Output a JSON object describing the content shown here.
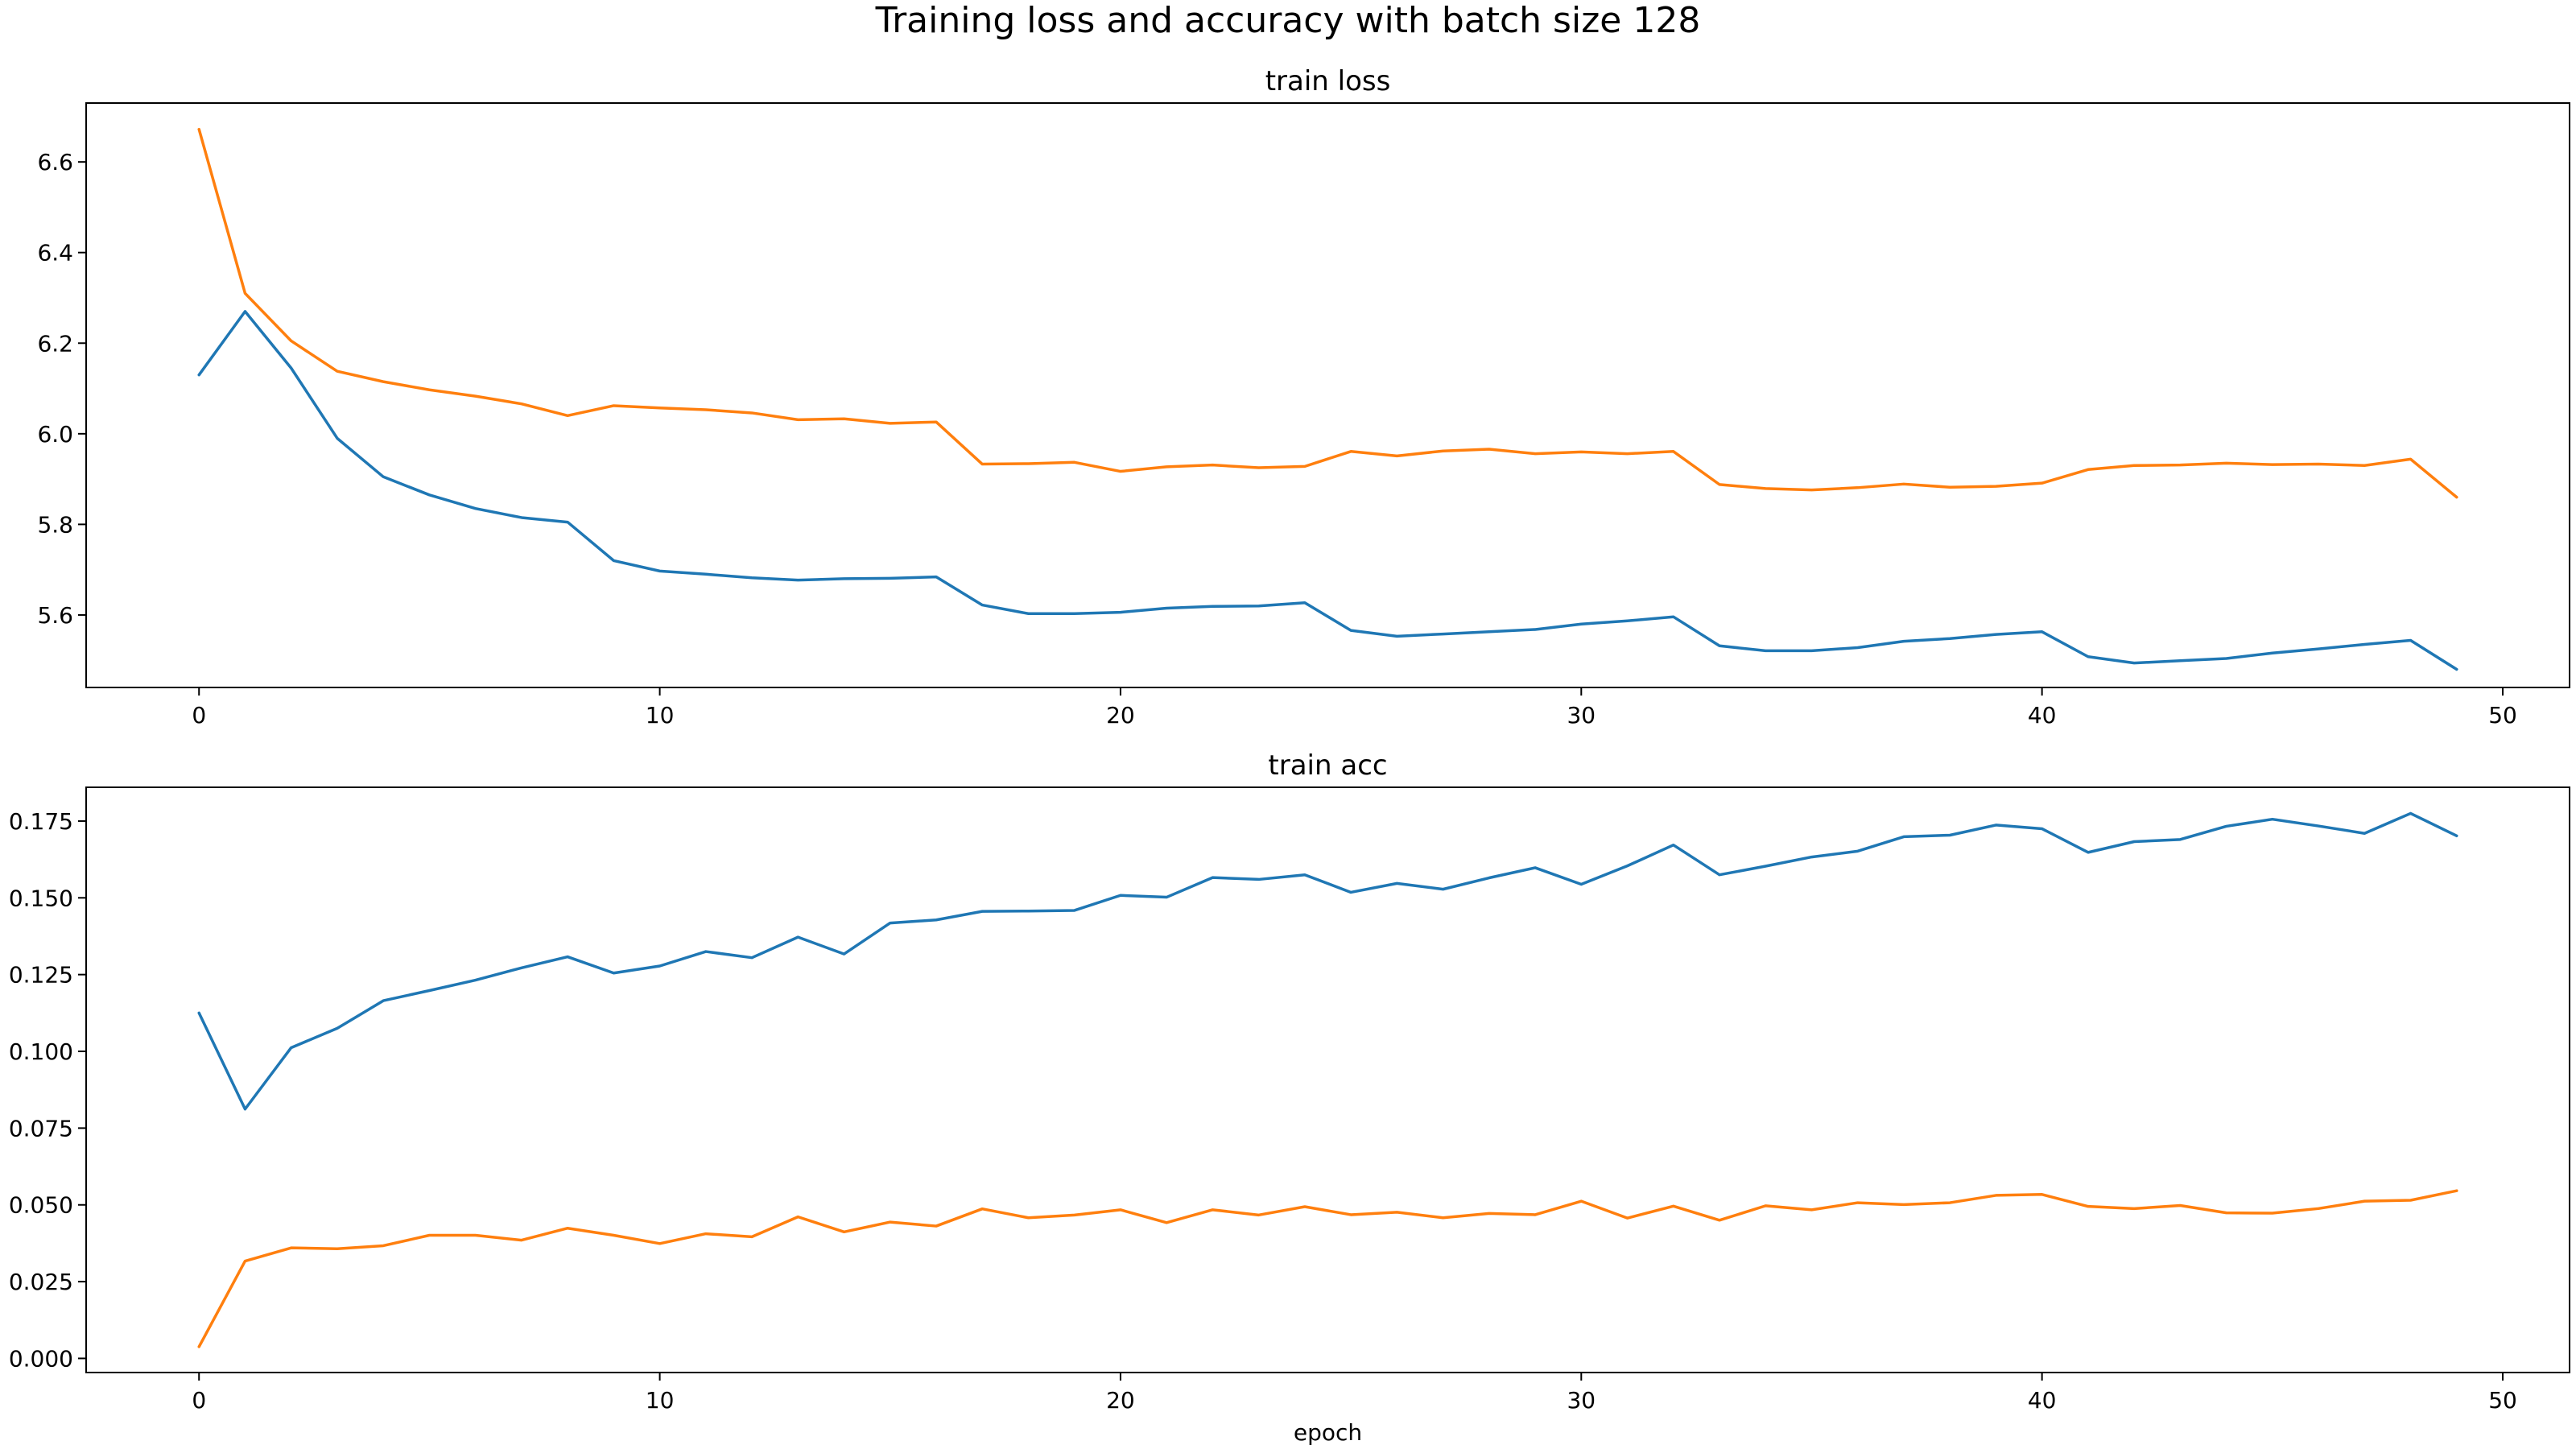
{
  "figure": {
    "suptitle": "Training loss and accuracy with batch size 128"
  },
  "colors": {
    "series_blue": "#1f77b4",
    "series_orange": "#ff7f0e"
  },
  "chart_data": [
    {
      "type": "line",
      "title": "train loss",
      "xlabel": "",
      "ylabel": "",
      "xlim": [
        -2.45,
        51.45
      ],
      "ylim": [
        5.44,
        6.73
      ],
      "xticks": [
        0,
        10,
        20,
        30,
        40,
        50
      ],
      "xtick_labels": [
        "0",
        "10",
        "20",
        "30",
        "40",
        "50"
      ],
      "yticks": [
        5.6,
        5.8,
        6.0,
        6.2,
        6.4,
        6.6
      ],
      "ytick_labels": [
        "5.6",
        "5.8",
        "6.0",
        "6.2",
        "6.4",
        "6.6"
      ],
      "grid": false,
      "x": [
        0,
        1,
        2,
        3,
        4,
        5,
        6,
        7,
        8,
        9,
        10,
        11,
        12,
        13,
        14,
        15,
        16,
        17,
        18,
        19,
        20,
        21,
        22,
        23,
        24,
        25,
        26,
        27,
        28,
        29,
        30,
        31,
        32,
        33,
        34,
        35,
        36,
        37,
        38,
        39,
        40,
        41,
        42,
        43,
        44,
        45,
        46,
        47,
        48,
        49
      ],
      "series": [
        {
          "color": "#1f77b4",
          "values": [
            6.13,
            6.27,
            6.145,
            5.99,
            5.905,
            5.865,
            5.835,
            5.815,
            5.805,
            5.72,
            5.697,
            5.69,
            5.682,
            5.677,
            5.68,
            5.681,
            5.684,
            5.622,
            5.603,
            5.603,
            5.606,
            5.615,
            5.619,
            5.62,
            5.627,
            5.566,
            5.553,
            5.558,
            5.563,
            5.568,
            5.58,
            5.587,
            5.596,
            5.532,
            5.521,
            5.521,
            5.528,
            5.542,
            5.548,
            5.557,
            5.563,
            5.508,
            5.494,
            5.499,
            5.504,
            5.516,
            5.525,
            5.535,
            5.544,
            5.48
          ]
        },
        {
          "color": "#ff7f0e",
          "values": [
            6.672,
            6.31,
            6.205,
            6.138,
            6.115,
            6.097,
            6.083,
            6.066,
            6.04,
            6.062,
            6.057,
            6.053,
            6.046,
            6.031,
            6.033,
            6.023,
            6.026,
            5.933,
            5.934,
            5.937,
            5.917,
            5.927,
            5.931,
            5.925,
            5.928,
            5.961,
            5.951,
            5.962,
            5.966,
            5.956,
            5.96,
            5.956,
            5.961,
            5.888,
            5.879,
            5.876,
            5.881,
            5.889,
            5.882,
            5.884,
            5.891,
            5.921,
            5.93,
            5.931,
            5.935,
            5.932,
            5.933,
            5.93,
            5.944,
            5.86
          ]
        }
      ]
    },
    {
      "type": "line",
      "title": "train acc",
      "xlabel": "epoch",
      "ylabel": "",
      "xlim": [
        -2.45,
        51.45
      ],
      "ylim": [
        -0.0046,
        0.186
      ],
      "xticks": [
        0,
        10,
        20,
        30,
        40,
        50
      ],
      "xtick_labels": [
        "0",
        "10",
        "20",
        "30",
        "40",
        "50"
      ],
      "yticks": [
        0.0,
        0.025,
        0.05,
        0.075,
        0.1,
        0.125,
        0.15,
        0.175
      ],
      "ytick_labels": [
        "0.000",
        "0.025",
        "0.050",
        "0.075",
        "0.100",
        "0.125",
        "0.150",
        "0.175"
      ],
      "grid": false,
      "x": [
        0,
        1,
        2,
        3,
        4,
        5,
        6,
        7,
        8,
        9,
        10,
        11,
        12,
        13,
        14,
        15,
        16,
        17,
        18,
        19,
        20,
        21,
        22,
        23,
        24,
        25,
        26,
        27,
        28,
        29,
        30,
        31,
        32,
        33,
        34,
        35,
        36,
        37,
        38,
        39,
        40,
        41,
        42,
        43,
        44,
        45,
        46,
        47,
        48,
        49
      ],
      "series": [
        {
          "color": "#1f77b4",
          "values": [
            0.1125,
            0.0812,
            0.1012,
            0.1075,
            0.1165,
            0.1198,
            0.1232,
            0.1272,
            0.1308,
            0.1255,
            0.1278,
            0.1325,
            0.1305,
            0.1372,
            0.1317,
            0.1418,
            0.1428,
            0.1456,
            0.1457,
            0.1459,
            0.1508,
            0.1502,
            0.1566,
            0.156,
            0.1575,
            0.1518,
            0.1547,
            0.1528,
            0.1565,
            0.1598,
            0.1544,
            0.1604,
            0.1672,
            0.1575,
            0.1603,
            0.1633,
            0.1652,
            0.1699,
            0.1704,
            0.1737,
            0.1725,
            0.1648,
            0.1683,
            0.169,
            0.1733,
            0.1756,
            0.1734,
            0.171,
            0.1775,
            0.1702
          ]
        },
        {
          "color": "#ff7f0e",
          "values": [
            0.0038,
            0.0317,
            0.036,
            0.0357,
            0.0367,
            0.0401,
            0.0401,
            0.0385,
            0.0424,
            0.0401,
            0.0374,
            0.0406,
            0.0396,
            0.0461,
            0.0412,
            0.0444,
            0.0431,
            0.0487,
            0.0458,
            0.0467,
            0.0484,
            0.0442,
            0.0484,
            0.0467,
            0.0494,
            0.0468,
            0.0476,
            0.0458,
            0.0472,
            0.0468,
            0.0512,
            0.0457,
            0.0496,
            0.045,
            0.0497,
            0.0484,
            0.0507,
            0.0501,
            0.0507,
            0.0531,
            0.0534,
            0.0495,
            0.0488,
            0.0498,
            0.0474,
            0.0473,
            0.0488,
            0.0512,
            0.0515,
            0.0546
          ]
        }
      ]
    }
  ]
}
